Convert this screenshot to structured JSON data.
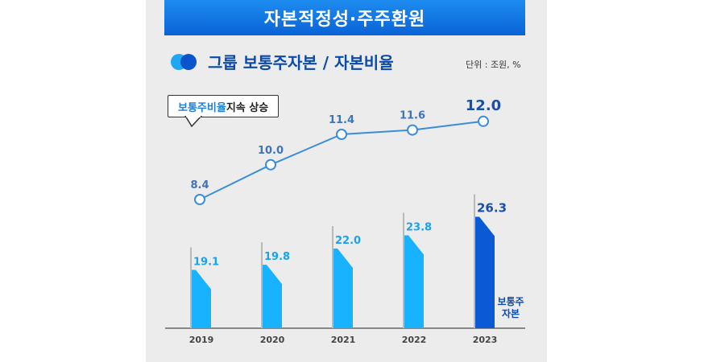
{
  "header": {
    "title": "자본적정성·주주환원"
  },
  "legend": {
    "title": "그룹 보통주자본 / 자본비율",
    "unit": "단위 : 조원, %"
  },
  "callout": {
    "highlight": "보통주비율",
    "rest": " 지속 상승"
  },
  "bar_note": {
    "line1": "보통주",
    "line2": "자본"
  },
  "colors": {
    "bar": "#18b2ff",
    "bar_last": "#0a5ad6",
    "line": "#3a8ddb",
    "bar_label": "#1aa3ea",
    "line_label": "#3f74b8",
    "highlight_label": "#1a4fa8"
  },
  "chart_data": {
    "type": "bar+line",
    "title": "그룹 보통주자본 / 자본비율",
    "categories": [
      "2019",
      "2020",
      "2021",
      "2022",
      "2023"
    ],
    "series": [
      {
        "name": "보통주자본",
        "kind": "bar",
        "unit": "조원",
        "values": [
          19.1,
          19.8,
          22.0,
          23.8,
          26.3
        ]
      },
      {
        "name": "보통주비율",
        "kind": "line",
        "unit": "%",
        "values": [
          8.4,
          10.0,
          11.4,
          11.6,
          12.0
        ]
      }
    ],
    "labels": {
      "bar": [
        "19.1",
        "19.8",
        "22.0",
        "23.8",
        "26.3"
      ],
      "line": [
        "8.4",
        "10.0",
        "11.4",
        "11.6",
        "12.0"
      ]
    }
  }
}
